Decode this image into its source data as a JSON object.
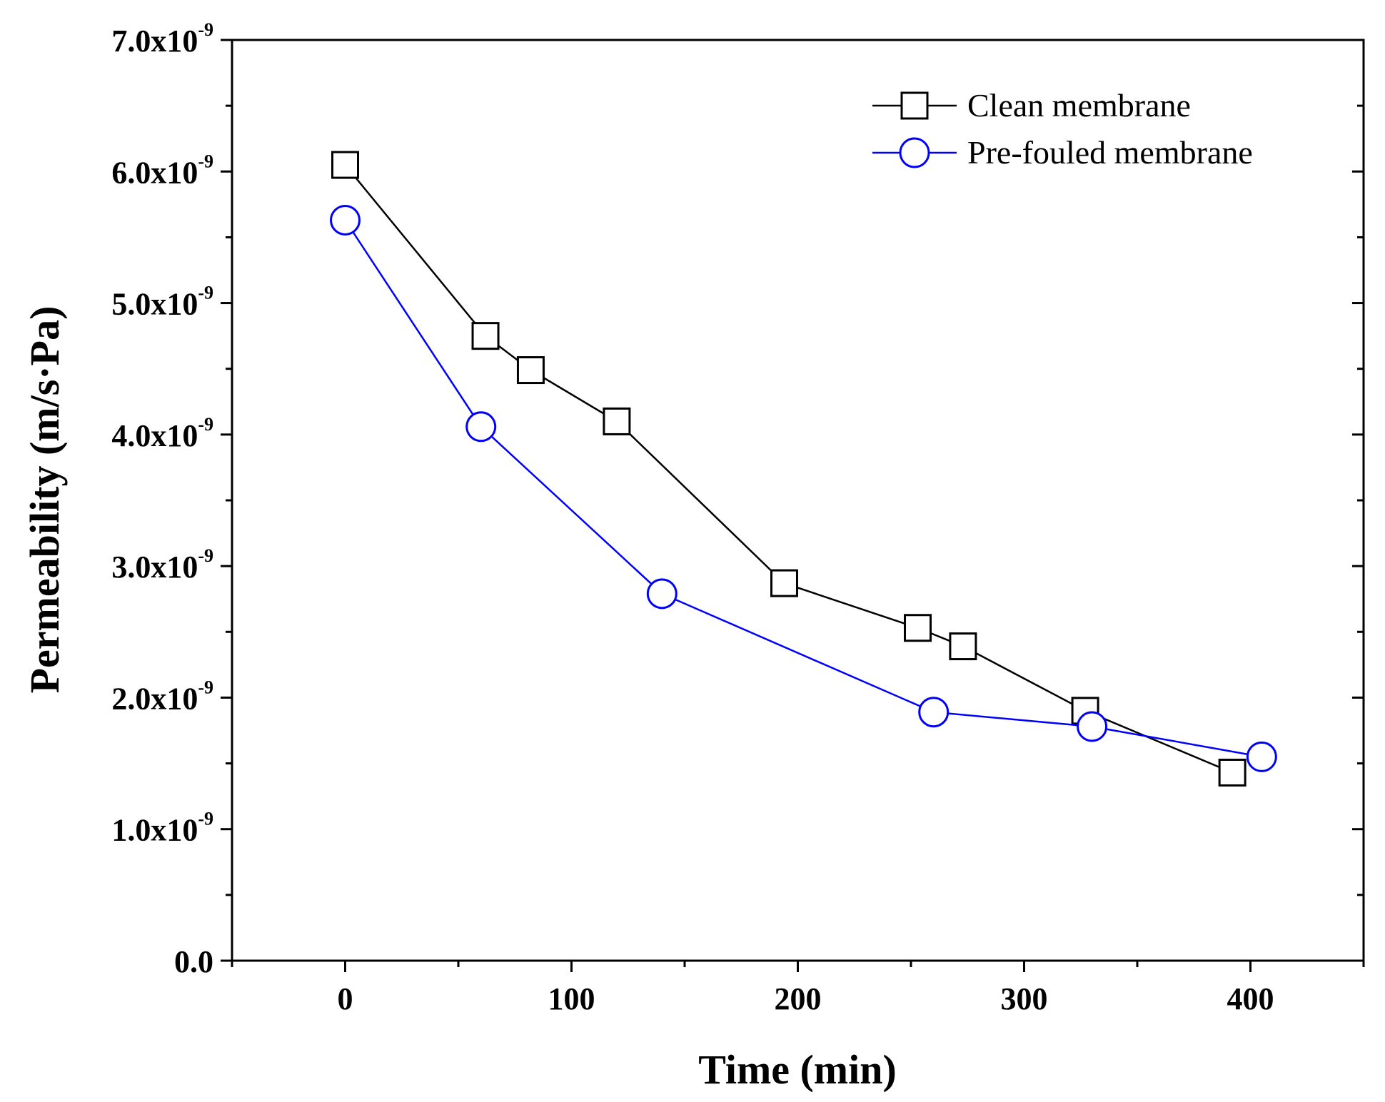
{
  "chart_data": {
    "type": "line",
    "title": "",
    "xlabel": "Time (min)",
    "ylabel": "Permeability (m/s·Pa)",
    "xlim": [
      -50,
      450
    ],
    "ylim": [
      0,
      7.0
    ],
    "x_ticks": [
      0,
      100,
      200,
      300,
      400
    ],
    "x_minor_ticks": [
      -50,
      50,
      150,
      250,
      350,
      450
    ],
    "x_tick_labels": [
      "0",
      "100",
      "200",
      "300",
      "400"
    ],
    "y_ticks": [
      0,
      1,
      2,
      3,
      4,
      5,
      6,
      7
    ],
    "y_minor_ticks": [
      0.5,
      1.5,
      2.5,
      3.5,
      4.5,
      5.5,
      6.5
    ],
    "y_tick_labels": [
      {
        "mantissa": "0.0",
        "exp": ""
      },
      {
        "mantissa": "1.0x10",
        "exp": "-9"
      },
      {
        "mantissa": "2.0x10",
        "exp": "-9"
      },
      {
        "mantissa": "3.0x10",
        "exp": "-9"
      },
      {
        "mantissa": "4.0x10",
        "exp": "-9"
      },
      {
        "mantissa": "5.0x10",
        "exp": "-9"
      },
      {
        "mantissa": "6.0x10",
        "exp": "-9"
      },
      {
        "mantissa": "7.0x10",
        "exp": "-9"
      }
    ],
    "y_scale_note": "values in units of 1e-9 m/s·Pa",
    "legend_position": "top-right",
    "series": [
      {
        "name": "Clean membrane",
        "color": "#000000",
        "marker": "square",
        "x": [
          0,
          62,
          82,
          120,
          194,
          253,
          273,
          327,
          392
        ],
        "y": [
          6.05,
          4.75,
          4.49,
          4.1,
          2.87,
          2.53,
          2.39,
          1.9,
          1.43
        ]
      },
      {
        "name": "Pre-fouled membrane",
        "color": "#0000ff",
        "marker": "circle",
        "x": [
          0,
          60,
          140,
          260,
          330,
          405
        ],
        "y": [
          5.63,
          4.06,
          2.79,
          1.89,
          1.78,
          1.55
        ]
      }
    ]
  }
}
